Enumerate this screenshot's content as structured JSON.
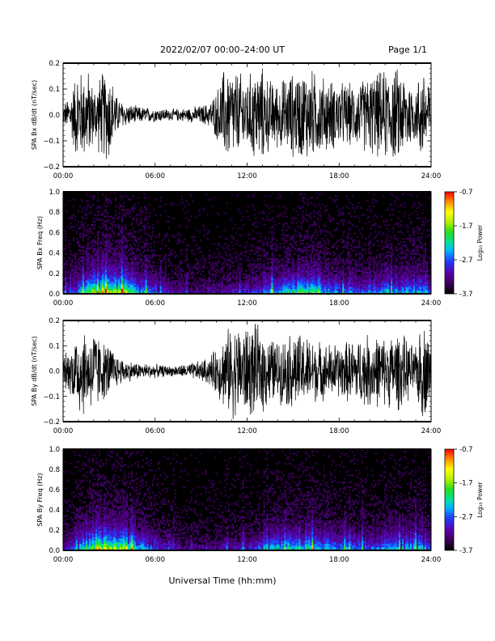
{
  "header": {
    "title": "2022/02/07  00:00–24:00 UT",
    "page": "Page 1/1"
  },
  "x_axis_label": "Universal Time (hh:mm)",
  "colorbar": {
    "label": "Log₁₀ Power",
    "ticks": [
      "-0.7",
      "-1.7",
      "-2.7",
      "-3.7"
    ],
    "range": [
      -3.7,
      -0.7
    ],
    "colors": [
      "#000000",
      "#3a0058",
      "#5a00a8",
      "#1f3dff",
      "#00b4ff",
      "#00e0a0",
      "#20e020",
      "#b0f000",
      "#ffff00",
      "#ff9000",
      "#ff0000"
    ]
  },
  "chart_data": [
    {
      "type": "line",
      "ylabel": "SPA Bx dB/dt (nT/sec)",
      "x_ticks": [
        "00:00",
        "06:00",
        "12:00",
        "18:00",
        "24:00"
      ],
      "y_ticks": [
        "0.2",
        "0.1",
        "0.0",
        "−0.1",
        "−0.2"
      ],
      "xlim_hours": [
        0,
        24
      ],
      "ylim": [
        -0.2,
        0.2
      ],
      "color": "#000000",
      "envelope": {
        "hour": [
          0,
          0.5,
          0.9,
          1.0,
          1.3,
          1.6,
          2.0,
          2.5,
          3.0,
          3.5,
          4.0,
          5.0,
          6.0,
          7.0,
          8.0,
          9.0,
          9.5,
          10.0,
          10.5,
          11.0,
          11.5,
          12.0,
          12.5,
          13.0,
          13.5,
          14.0,
          15.0,
          16.0,
          17.0,
          18.0,
          19.0,
          20.0,
          21.0,
          22.0,
          22.5,
          23.0,
          23.3,
          23.7,
          24.0
        ],
        "amplitude": [
          0.04,
          0.09,
          0.2,
          0.2,
          0.18,
          0.2,
          0.12,
          0.18,
          0.2,
          0.08,
          0.05,
          0.035,
          0.03,
          0.025,
          0.028,
          0.04,
          0.05,
          0.1,
          0.2,
          0.2,
          0.18,
          0.16,
          0.2,
          0.2,
          0.15,
          0.14,
          0.18,
          0.2,
          0.16,
          0.14,
          0.13,
          0.17,
          0.19,
          0.2,
          0.16,
          0.11,
          0.2,
          0.2,
          0.11
        ]
      }
    },
    {
      "type": "heatmap",
      "ylabel": "SPA Bx Freq (Hz)",
      "x_ticks": [
        "00:00",
        "06:00",
        "12:00",
        "18:00",
        "24:00"
      ],
      "y_ticks": [
        "1.0",
        "0.8",
        "0.6",
        "0.4",
        "0.2",
        "0.0"
      ],
      "xlim_hours": [
        0,
        24
      ],
      "ylim": [
        0,
        1.0
      ],
      "z_label": "Log₁₀ Power",
      "zlim": [
        -3.7,
        -0.7
      ]
    },
    {
      "type": "line",
      "ylabel": "SPA By dB/dt (nT/sec)",
      "x_ticks": [
        "00:00",
        "06:00",
        "12:00",
        "18:00",
        "24:00"
      ],
      "y_ticks": [
        "0.2",
        "0.1",
        "0.0",
        "−0.1",
        "−0.2"
      ],
      "xlim_hours": [
        0,
        24
      ],
      "ylim": [
        -0.2,
        0.2
      ],
      "color": "#000000",
      "envelope": {
        "hour": [
          0,
          0.5,
          1.0,
          1.3,
          1.6,
          2.0,
          2.5,
          3.0,
          3.5,
          4.0,
          5.0,
          6.0,
          7.0,
          8.0,
          9.0,
          9.5,
          10.0,
          10.5,
          11.0,
          11.5,
          12.0,
          12.5,
          13.0,
          13.5,
          14.0,
          15.0,
          16.0,
          17.0,
          18.0,
          19.0,
          20.0,
          21.0,
          22.0,
          22.5,
          23.0,
          23.3,
          23.7,
          24.0
        ],
        "amplitude": [
          0.07,
          0.1,
          0.2,
          0.2,
          0.15,
          0.2,
          0.13,
          0.12,
          0.07,
          0.05,
          0.035,
          0.03,
          0.022,
          0.03,
          0.045,
          0.06,
          0.1,
          0.16,
          0.2,
          0.2,
          0.2,
          0.2,
          0.18,
          0.15,
          0.13,
          0.17,
          0.15,
          0.12,
          0.12,
          0.14,
          0.16,
          0.15,
          0.17,
          0.13,
          0.1,
          0.2,
          0.2,
          0.1
        ]
      }
    },
    {
      "type": "heatmap",
      "ylabel": "SPA By Freq (Hz)",
      "x_ticks": [
        "00:00",
        "06:00",
        "12:00",
        "18:00",
        "24:00"
      ],
      "y_ticks": [
        "1.0",
        "0.8",
        "0.6",
        "0.4",
        "0.2",
        "0.0"
      ],
      "xlim_hours": [
        0,
        24
      ],
      "ylim": [
        0,
        1.0
      ],
      "z_label": "Log₁₀ Power",
      "zlim": [
        -3.7,
        -0.7
      ]
    }
  ]
}
